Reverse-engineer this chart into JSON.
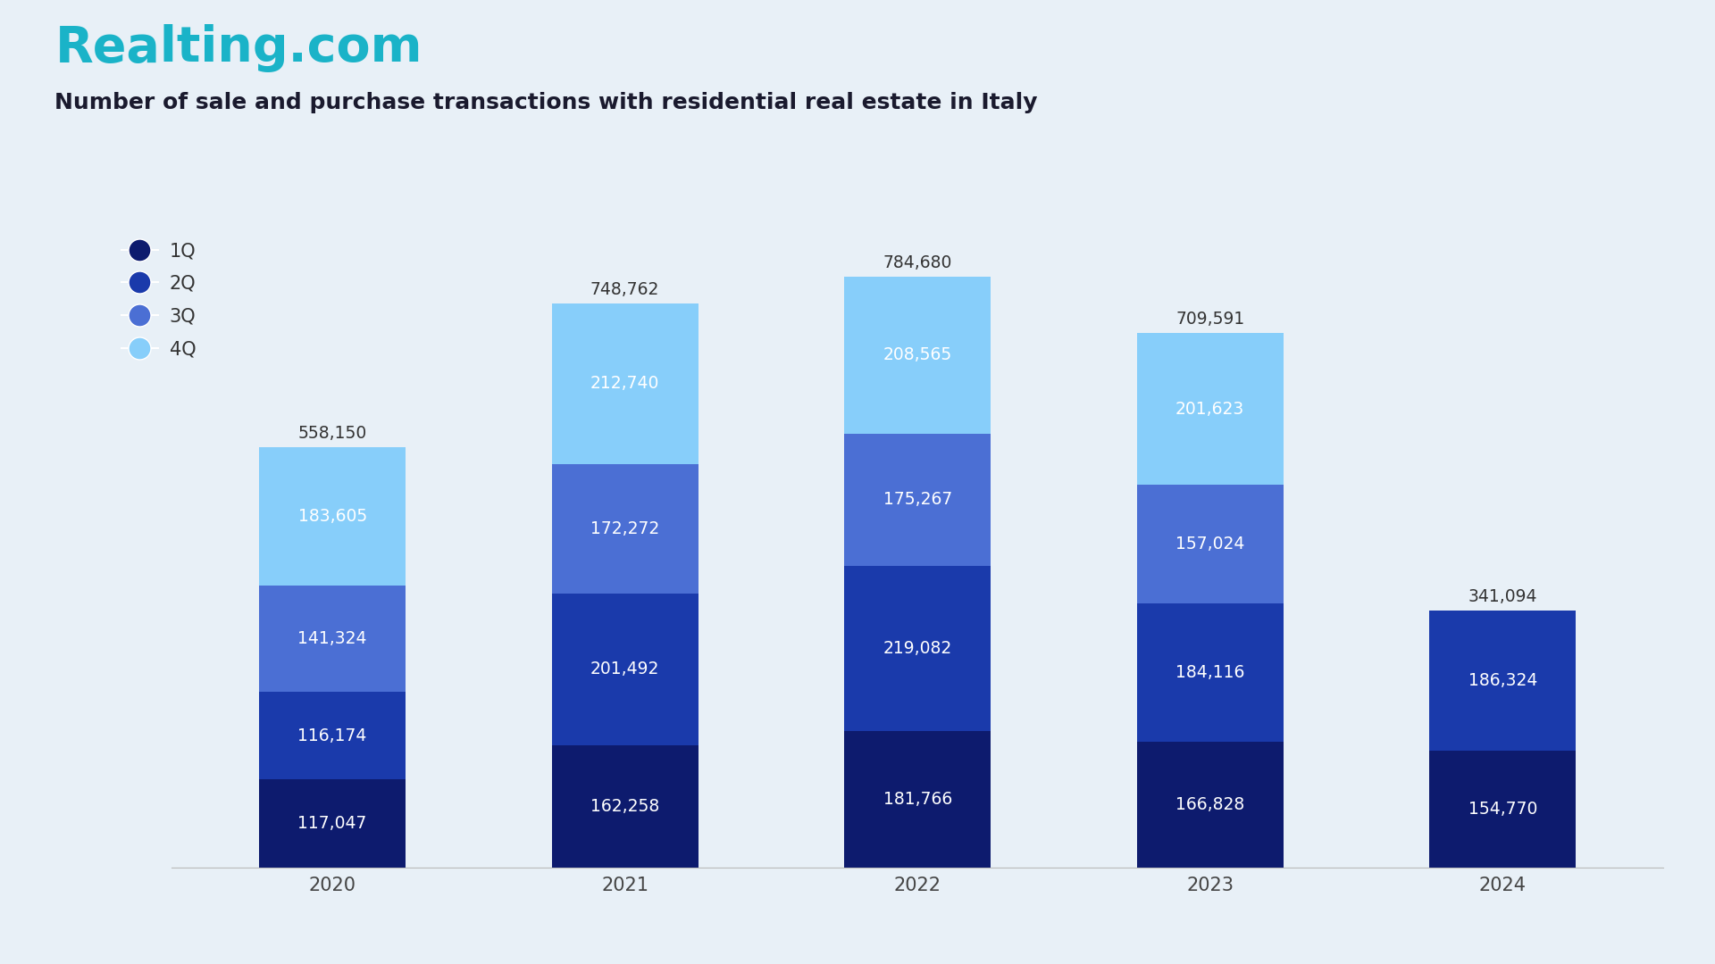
{
  "title": "Number of sale and purchase transactions with residential real estate in Italy",
  "brand": "Realting.com",
  "years": [
    "2020",
    "2021",
    "2022",
    "2023",
    "2024"
  ],
  "quarters": [
    "1Q",
    "2Q",
    "3Q",
    "4Q"
  ],
  "values": {
    "1Q": [
      117047,
      162258,
      181766,
      166828,
      154770
    ],
    "2Q": [
      116174,
      201492,
      219082,
      184116,
      186324
    ],
    "3Q": [
      141324,
      172272,
      175267,
      157024,
      0
    ],
    "4Q": [
      183605,
      212740,
      208565,
      201623,
      0
    ]
  },
  "totals": [
    558150,
    748762,
    784680,
    709591,
    341094
  ],
  "colors": {
    "1Q": "#0d1b6e",
    "2Q": "#1a3aab",
    "3Q": "#4b6fd4",
    "4Q": "#87cefa"
  },
  "background_color": "#e8f0f7",
  "brand_color": "#1ab3c8",
  "title_color": "#1a1a2e",
  "bar_width": 0.5
}
